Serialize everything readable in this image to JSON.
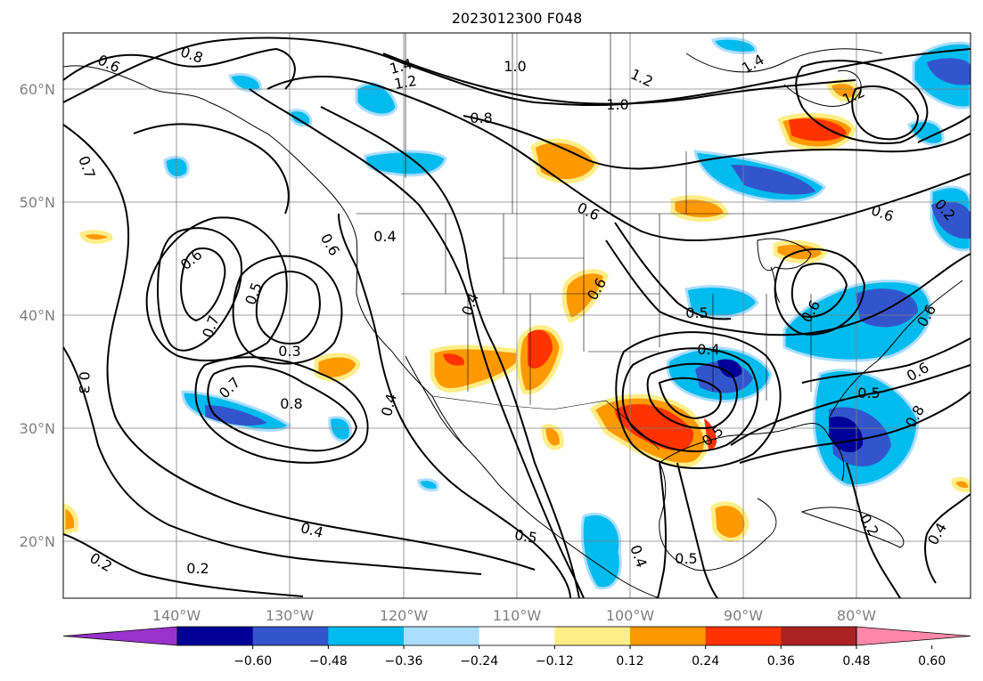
{
  "title": "2023012300 F048",
  "map": {
    "lat_labels": [
      "60°N",
      "50°N",
      "40°N",
      "30°N",
      "20°N"
    ],
    "lon_labels": [
      "140°W",
      "130°W",
      "120°W",
      "110°W",
      "100°W",
      "90°W",
      "80°W"
    ],
    "lat_range": [
      15,
      65
    ],
    "lon_range": [
      -150,
      -70
    ],
    "grid": true,
    "gridline_color": "#808080",
    "contour_color": "#000000",
    "contour_labels": [
      "0.6",
      "0.8",
      "1.4",
      "1.0",
      "1.2",
      "0.8",
      "1.0",
      "1.2",
      "1.4",
      "1.2",
      "0.7",
      "0.6",
      "0.4",
      "0.6",
      "0.6",
      "0.5",
      "0.7",
      "0.3",
      "0.4",
      "0.5",
      "0.4",
      "0.8",
      "0.6",
      "0.2",
      "0.2",
      "0.4",
      "0.5",
      "0.3",
      "0.7",
      "0.4",
      "0.5",
      "0.6",
      "0.8",
      "0.5",
      "0.6",
      "0.6",
      "0.2",
      "0.2",
      "0.4",
      "0.4",
      "0.5",
      "0.6"
    ]
  },
  "colorbar": {
    "tick_labels": [
      "−0.60",
      "−0.48",
      "−0.36",
      "−0.24",
      "−0.12",
      "0.12",
      "0.24",
      "0.36",
      "0.48",
      "0.60"
    ],
    "colors": [
      "#9933cc",
      "#000099",
      "#3355cc",
      "#00bbee",
      "#aaddff",
      "#ffffff",
      "#ffee88",
      "#ff9900",
      "#ff3300",
      "#aa2222",
      "#ff88aa"
    ],
    "extend": "both"
  }
}
